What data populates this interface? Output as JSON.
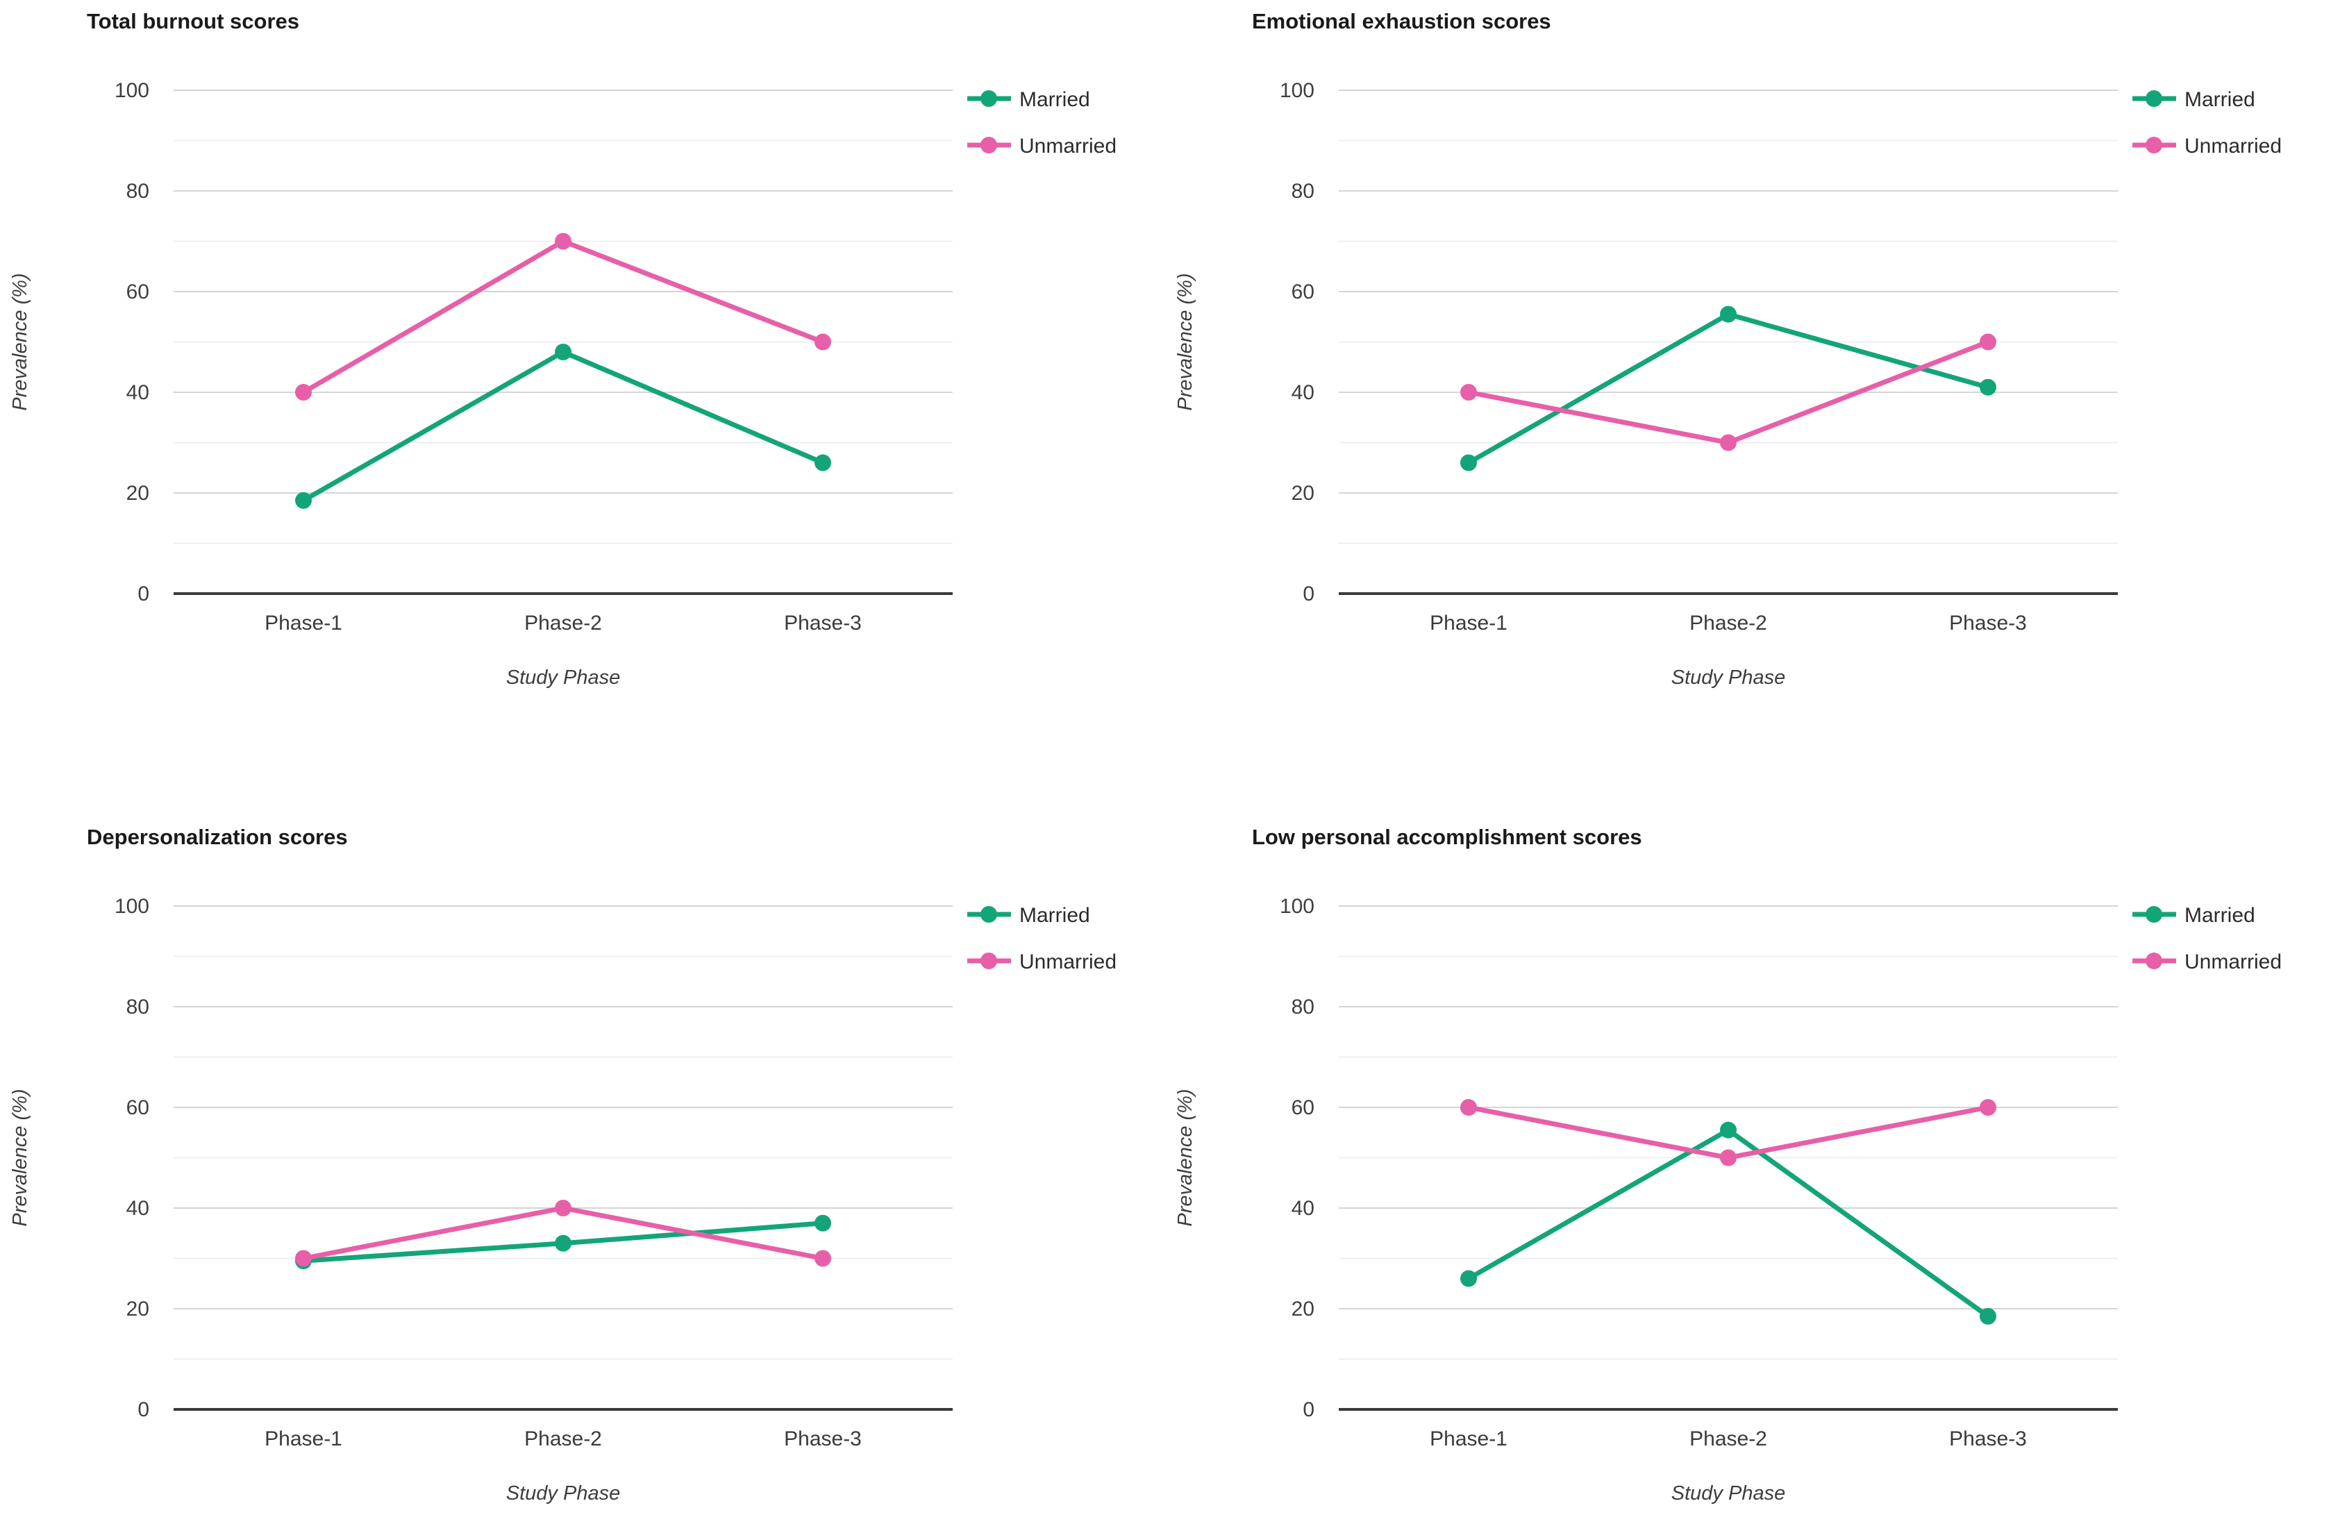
{
  "page": {
    "background": "#ffffff",
    "text_color": "#3f3f3f",
    "title_color": "#1a1a1a",
    "major_gridline_color": "#d5d5d5",
    "minor_gridline_color": "#eaeaea",
    "axis_line_color": "#3a3a3a"
  },
  "chart_data": [
    {
      "type": "line",
      "title": "Total burnout scores",
      "xlabel": "Study Phase",
      "ylabel": "Prevalence (%)",
      "categories": [
        "Phase-1",
        "Phase-2",
        "Phase-3"
      ],
      "ylim": [
        0,
        100
      ],
      "yticks": [
        0,
        20,
        40,
        60,
        80,
        100
      ],
      "minor_ytick_step": 10,
      "grid": "horizontal",
      "legend_position": "outside-top-right",
      "series": [
        {
          "name": "Married",
          "color": "#13a579",
          "values": [
            18.5,
            48,
            26
          ]
        },
        {
          "name": "Unmarried",
          "color": "#e75fa8",
          "values": [
            40,
            70,
            50
          ]
        }
      ]
    },
    {
      "type": "line",
      "title": "Emotional exhaustion scores",
      "xlabel": "Study Phase",
      "ylabel": "Prevalence (%)",
      "categories": [
        "Phase-1",
        "Phase-2",
        "Phase-3"
      ],
      "ylim": [
        0,
        100
      ],
      "yticks": [
        0,
        20,
        40,
        60,
        80,
        100
      ],
      "minor_ytick_step": 10,
      "grid": "horizontal",
      "legend_position": "outside-top-right",
      "series": [
        {
          "name": "Married",
          "color": "#13a579",
          "values": [
            26,
            55.5,
            41
          ]
        },
        {
          "name": "Unmarried",
          "color": "#e75fa8",
          "values": [
            40,
            30,
            50
          ]
        }
      ]
    },
    {
      "type": "line",
      "title": "Depersonalization scores",
      "xlabel": "Study Phase",
      "ylabel": "Prevalence (%)",
      "categories": [
        "Phase-1",
        "Phase-2",
        "Phase-3"
      ],
      "ylim": [
        0,
        100
      ],
      "yticks": [
        0,
        20,
        40,
        60,
        80,
        100
      ],
      "minor_ytick_step": 10,
      "grid": "horizontal",
      "legend_position": "outside-top-right",
      "series": [
        {
          "name": "Married",
          "color": "#13a579",
          "values": [
            29.5,
            33,
            37
          ]
        },
        {
          "name": "Unmarried",
          "color": "#e75fa8",
          "values": [
            30,
            40,
            30
          ]
        }
      ]
    },
    {
      "type": "line",
      "title": "Low personal accomplishment scores",
      "xlabel": "Study Phase",
      "ylabel": "Prevalence (%)",
      "categories": [
        "Phase-1",
        "Phase-2",
        "Phase-3"
      ],
      "ylim": [
        0,
        100
      ],
      "yticks": [
        0,
        20,
        40,
        60,
        80,
        100
      ],
      "minor_ytick_step": 10,
      "grid": "horizontal",
      "legend_position": "outside-top-right",
      "series": [
        {
          "name": "Married",
          "color": "#13a579",
          "values": [
            26,
            55.5,
            18.5
          ]
        },
        {
          "name": "Unmarried",
          "color": "#e75fa8",
          "values": [
            60,
            50,
            60
          ]
        }
      ]
    }
  ]
}
